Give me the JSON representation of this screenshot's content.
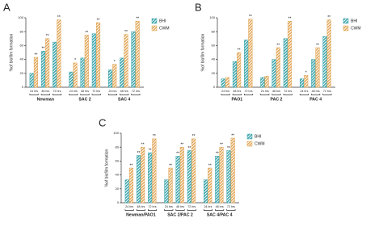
{
  "chart_data": [
    {
      "type": "bar",
      "panel": "A",
      "y_label": "%of biofilm formation",
      "groups": [
        "Newman",
        "SAC 2",
        "SAC 4"
      ],
      "subcategories": [
        "24 hrs",
        "48 hrs",
        "72 hrs"
      ],
      "ylim": [
        0,
        100
      ],
      "yticks": [
        0,
        20,
        40,
        60,
        80,
        100
      ],
      "series": [
        {
          "name": "BHI",
          "color": "#2e9fa6",
          "values": [
            20,
            52,
            65,
            22,
            42,
            77,
            25,
            42,
            80
          ],
          "marks": [
            null,
            "**",
            null,
            null,
            null,
            null,
            null,
            null,
            null
          ]
        },
        {
          "name": "CWM",
          "color": "#e0a24f",
          "values": [
            43,
            70,
            97,
            35,
            75,
            93,
            33,
            76,
            95
          ],
          "marks": [
            "**",
            "**",
            "**",
            "*",
            "**",
            "**",
            "*",
            "**",
            "**"
          ]
        }
      ]
    },
    {
      "type": "bar",
      "panel": "B",
      "y_label": "%of biofilm formation",
      "groups": [
        "PAO1",
        "PAC 2",
        "PAC 4"
      ],
      "subcategories": [
        "24 hrs",
        "48 hrs",
        "72 hrs"
      ],
      "ylim": [
        0,
        100
      ],
      "yticks": [
        0,
        20,
        40,
        60,
        80,
        100
      ],
      "series": [
        {
          "name": "BHI",
          "color": "#2e9fa6",
          "values": [
            12,
            37,
            68,
            14,
            40,
            70,
            12,
            40,
            73
          ],
          "marks": [
            null,
            null,
            null,
            null,
            null,
            null,
            null,
            null,
            null
          ]
        },
        {
          "name": "CWM",
          "color": "#e0a24f",
          "values": [
            14,
            50,
            98,
            16,
            57,
            95,
            17,
            57,
            97
          ],
          "marks": [
            null,
            "**",
            "**",
            null,
            "**",
            "**",
            "*",
            "**",
            "**"
          ]
        }
      ]
    },
    {
      "type": "bar",
      "panel": "C",
      "y_label": "%of biofilm formation",
      "groups": [
        "Newman/PAO1",
        "SAC 2/PAC 2",
        "SAC 4/PAC 4"
      ],
      "subcategories": [
        "24 hrs",
        "48 hrs",
        "72 hrs"
      ],
      "ylim": [
        0,
        100
      ],
      "yticks": [
        0,
        20,
        40,
        60,
        80,
        100
      ],
      "series": [
        {
          "name": "BHI",
          "color": "#2e9fa6",
          "values": [
            33,
            68,
            72,
            33,
            67,
            75,
            33,
            67,
            75
          ],
          "marks": [
            null,
            "**",
            "**",
            null,
            "**",
            "**",
            null,
            "**",
            "**"
          ]
        },
        {
          "name": "CWM",
          "color": "#e0a24f",
          "values": [
            50,
            80,
            92,
            50,
            80,
            92,
            50,
            80,
            93
          ],
          "marks": [
            "**",
            "**",
            "**",
            "**",
            "**",
            "**",
            "**",
            "**",
            "**"
          ]
        }
      ]
    }
  ]
}
